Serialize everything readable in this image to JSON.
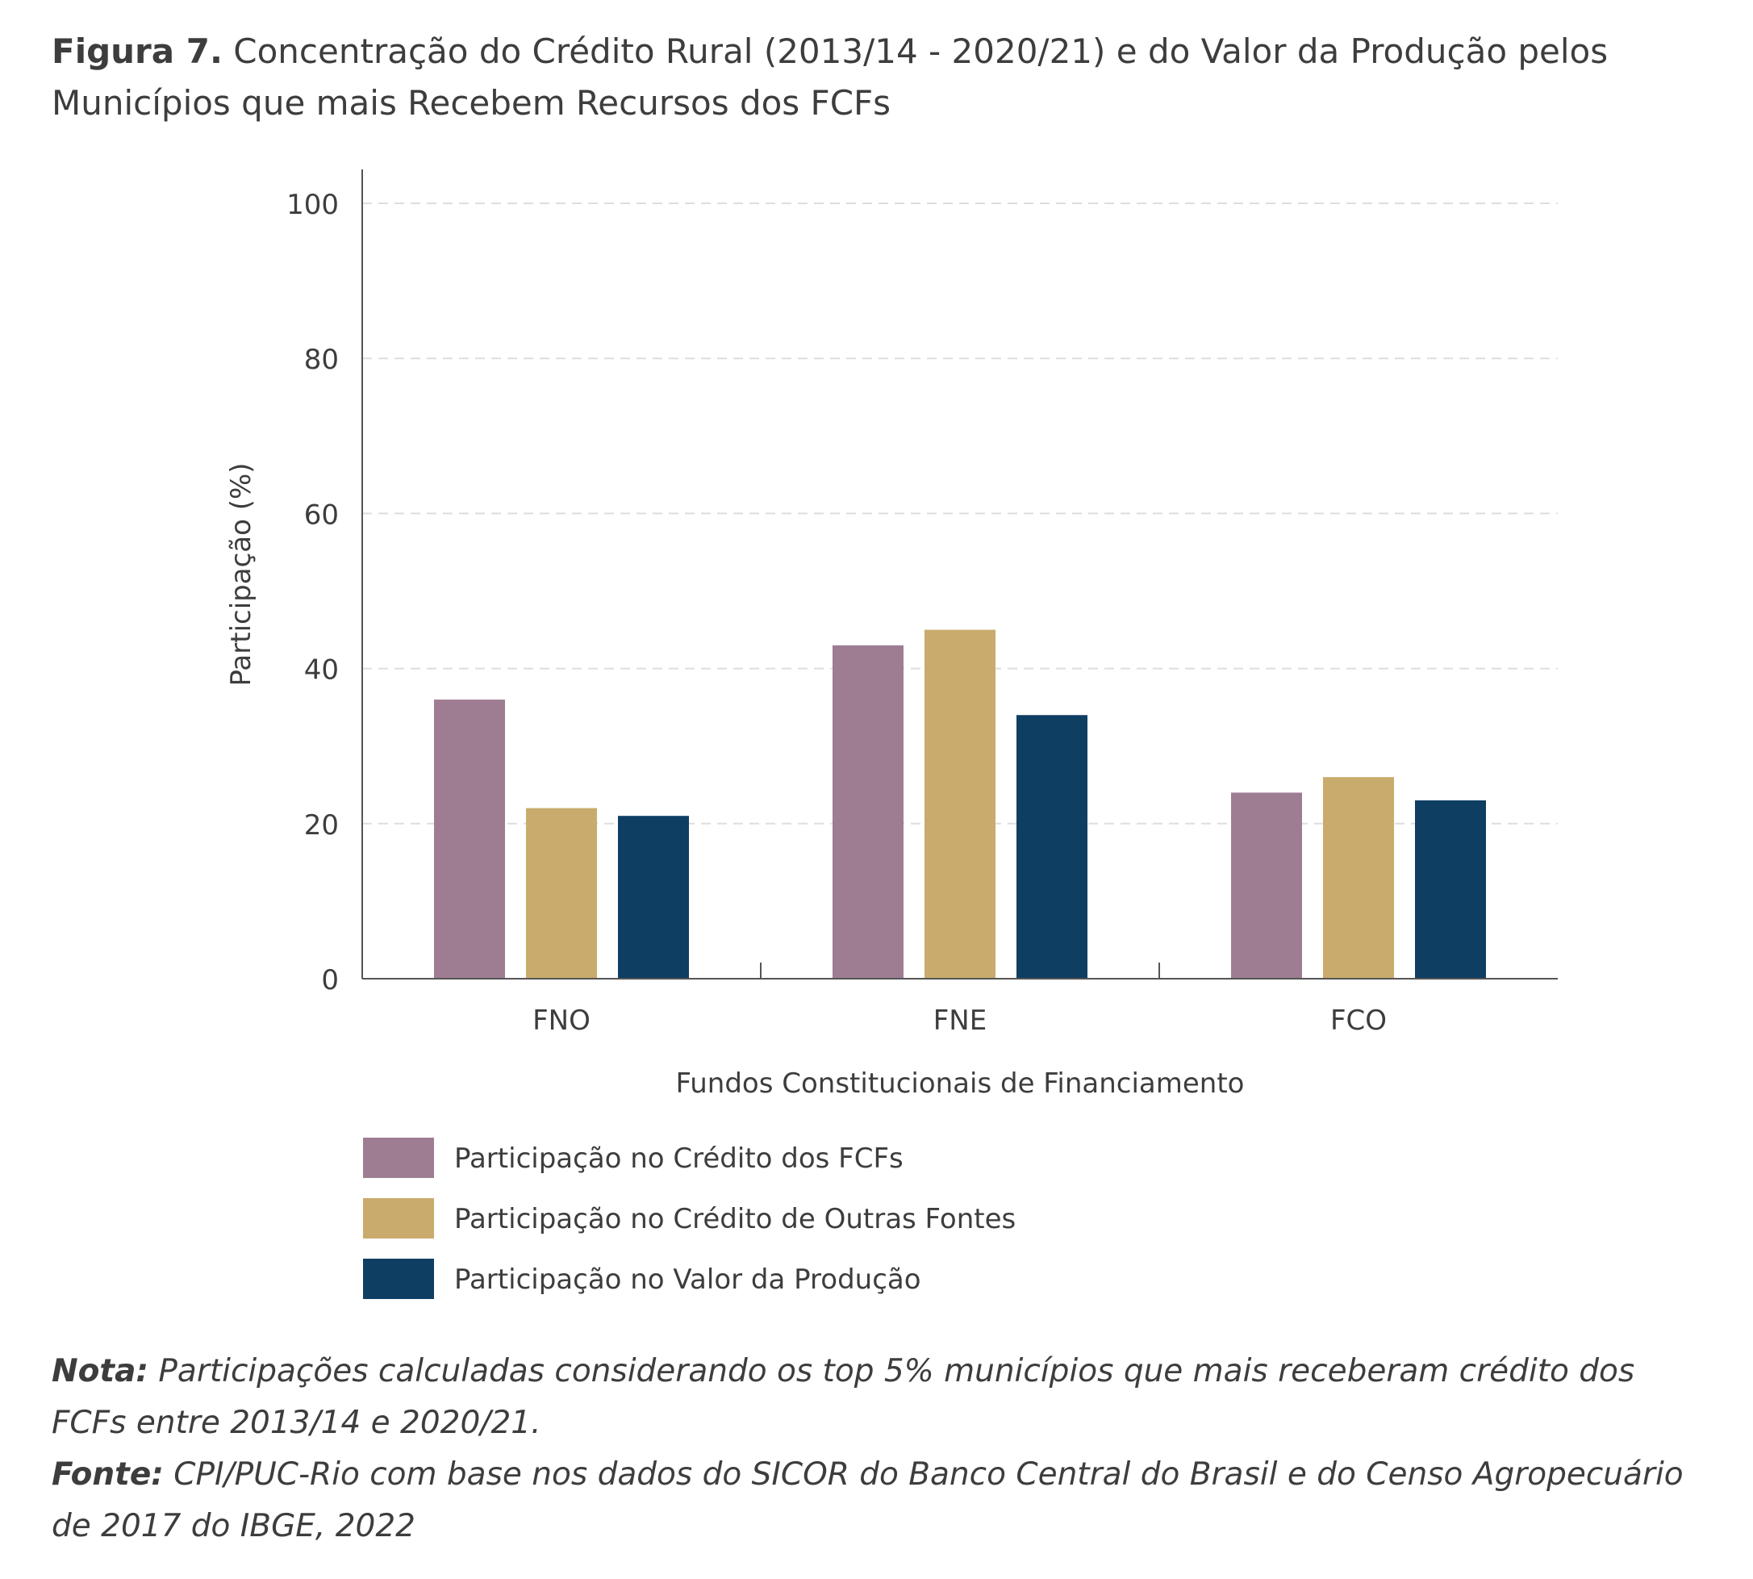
{
  "figure": {
    "label": "Figura 7.",
    "title": "Concentração do Crédito Rural (2013/14 - 2020/21) e do Valor da Produção pelos Municípios que mais Recebem Recursos dos FCFs"
  },
  "chart_data": {
    "type": "bar",
    "categories": [
      "FNO",
      "FNE",
      "FCO"
    ],
    "series": [
      {
        "name": "Participação no Crédito dos FCFs",
        "color": "#9e7d93",
        "values": [
          36,
          43,
          24
        ]
      },
      {
        "name": "Participação no Crédito de Outras Fontes",
        "color": "#c9ab6d",
        "values": [
          22,
          45,
          26
        ]
      },
      {
        "name": "Participação no Valor da Produção",
        "color": "#0f3e63",
        "values": [
          21,
          34,
          23
        ]
      }
    ],
    "xlabel": "Fundos Constitucionais de Financiamento",
    "ylabel": "Participação (%)",
    "ylim": [
      0,
      100
    ],
    "yticks": [
      0,
      20,
      40,
      60,
      80,
      100
    ],
    "grid": true,
    "legend_position": "bottom-left"
  },
  "notes": {
    "nota_label": "Nota:",
    "nota_text": "Participações calculadas considerando os top 5% municípios que mais receberam crédito dos FCFs entre 2013/14 e 2020/21.",
    "fonte_label": "Fonte:",
    "fonte_text": "CPI/PUC-Rio com base nos dados do SICOR do Banco Central do Brasil e do Censo Agropecuário de 2017 do IBGE, 2022"
  }
}
